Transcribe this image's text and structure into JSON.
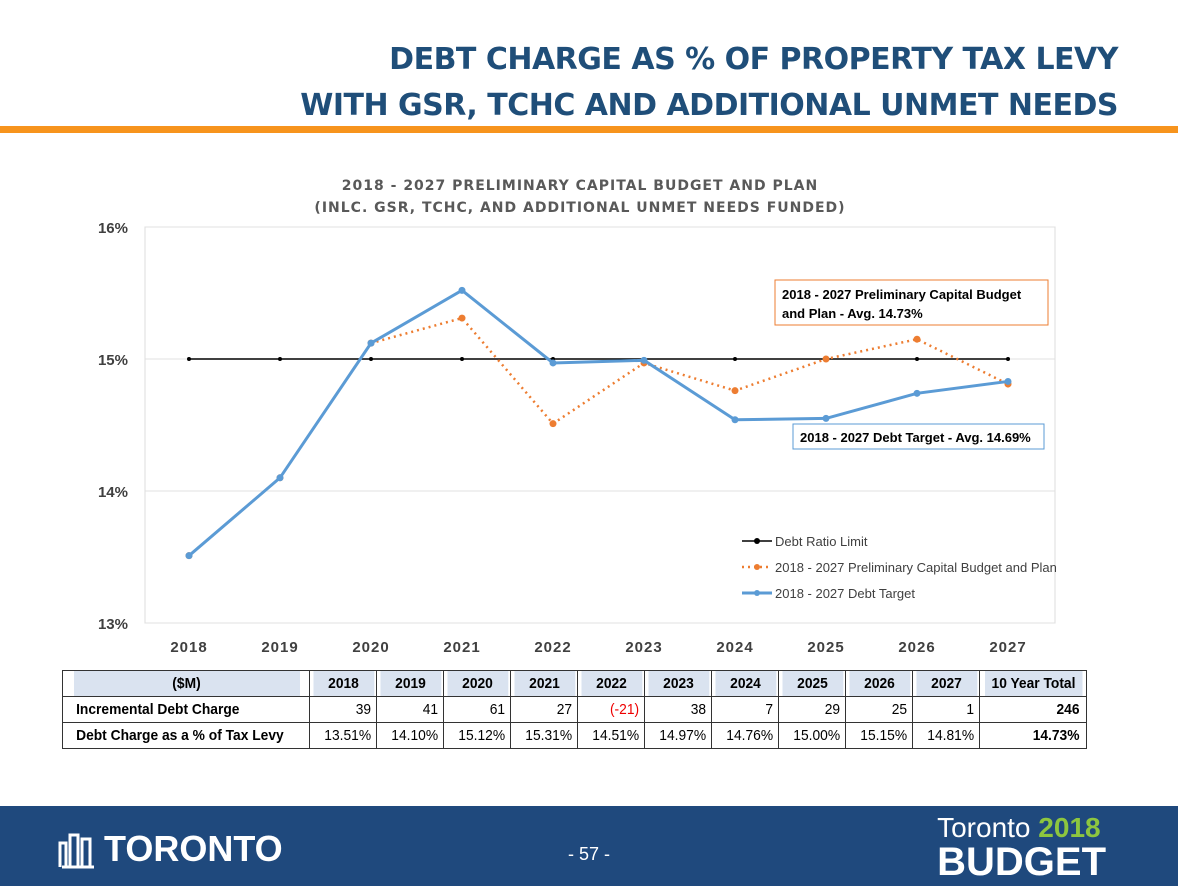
{
  "header": {
    "title_line1": "DEBT CHARGE AS % OF PROPERTY TAX LEVY",
    "title_line2": "WITH GSR, TCHC AND ADDITIONAL UNMET NEEDS"
  },
  "chart_data": {
    "type": "line",
    "title": "2018 - 2027 PRELIMINARY CAPITAL BUDGET AND PLAN",
    "subtitle": "(INLC. GSR, TCHC, AND ADDITIONAL UNMET NEEDS FUNDED)",
    "categories": [
      "2018",
      "2019",
      "2020",
      "2021",
      "2022",
      "2023",
      "2024",
      "2025",
      "2026",
      "2027"
    ],
    "ylim": [
      13,
      16
    ],
    "yticks": [
      "13%",
      "14%",
      "15%",
      "16%"
    ],
    "series": [
      {
        "name": "Debt Ratio Limit",
        "color": "#000000",
        "values": [
          15,
          15,
          15,
          15,
          15,
          15,
          15,
          15,
          15,
          15
        ]
      },
      {
        "name": "2018 - 2027 Preliminary Capital Budget and Plan",
        "color": "#ed7d31",
        "values": [
          13.51,
          14.1,
          15.12,
          15.31,
          14.51,
          14.97,
          14.76,
          15.0,
          15.15,
          14.81
        ]
      },
      {
        "name": "2018 - 2027 Debt Target",
        "color": "#5b9bd5",
        "values": [
          13.51,
          14.1,
          15.12,
          15.52,
          14.97,
          14.99,
          14.54,
          14.55,
          14.74,
          14.83
        ]
      }
    ],
    "annotations": [
      "2018 - 2027 Preliminary Capital Budget",
      "and Plan - Avg. 14.73%",
      "2018 - 2027 Debt Target - Avg. 14.69%"
    ],
    "legend": "bottom-right"
  },
  "table": {
    "headers": [
      "($M)",
      "2018",
      "2019",
      "2020",
      "2021",
      "2022",
      "2023",
      "2024",
      "2025",
      "2026",
      "2027",
      "10 Year Total"
    ],
    "rows": [
      [
        "Incremental Debt Charge",
        "39",
        "41",
        "61",
        "27",
        "(-21)",
        "38",
        "7",
        "29",
        "25",
        "1",
        "246"
      ],
      [
        "Debt Charge as a % of Tax Levy",
        "13.51%",
        "14.10%",
        "15.12%",
        "15.31%",
        "14.51%",
        "14.97%",
        "14.76%",
        "15.00%",
        "15.15%",
        "14.81%",
        "14.73%"
      ]
    ]
  },
  "footer": {
    "logo": "TORONTO",
    "page": "- 57 -",
    "brand_city": "Toronto",
    "brand_year": "2018",
    "brand_word": "BUDGET"
  }
}
